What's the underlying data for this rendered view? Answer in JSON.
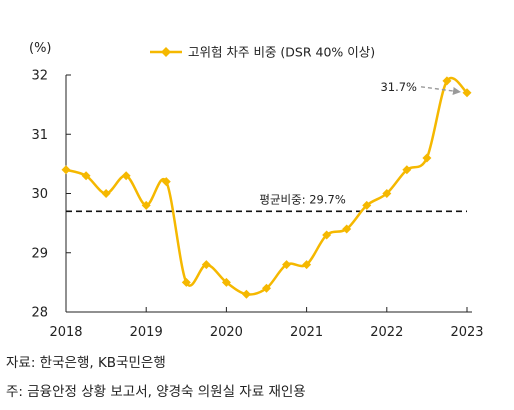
{
  "chart_data": {
    "type": "line",
    "unit": "(%)",
    "series": [
      {
        "name": "고위험 차주 비중 (DSR 40% 이상)",
        "color": "#F5B800",
        "x": [
          2018.0,
          2018.25,
          2018.5,
          2018.75,
          2019.0,
          2019.25,
          2019.5,
          2019.75,
          2020.0,
          2020.25,
          2020.5,
          2020.75,
          2021.0,
          2021.25,
          2021.5,
          2021.75,
          2022.0,
          2022.25,
          2022.5,
          2022.75,
          2023.0
        ],
        "values": [
          30.4,
          30.3,
          30.0,
          30.3,
          29.8,
          30.2,
          28.5,
          28.8,
          28.5,
          28.3,
          28.4,
          28.8,
          28.8,
          29.3,
          29.4,
          29.8,
          30.0,
          30.4,
          30.6,
          31.9,
          31.7
        ]
      }
    ],
    "average": {
      "value": 29.7,
      "label": "평균비중: 29.7%",
      "style": "dashed",
      "color": "#111111"
    },
    "annotations": [
      {
        "text": "31.7%",
        "x": 2023.0,
        "y": 31.7,
        "arrow_color": "#9a9a9a"
      }
    ],
    "x_ticks": [
      "2018",
      "2019",
      "2020",
      "2021",
      "2022",
      "2023"
    ],
    "y_ticks": [
      "28",
      "29",
      "30",
      "31",
      "32"
    ],
    "xlim": [
      2018,
      2023
    ],
    "ylim": [
      28,
      32
    ],
    "grid": false,
    "legend_position": "top-center"
  },
  "footnotes": {
    "source": "자료: 한국은행, KB국민은행",
    "note": "주: 금융안정 상황 보고서, 양경숙 의원실 자료 재인용"
  }
}
